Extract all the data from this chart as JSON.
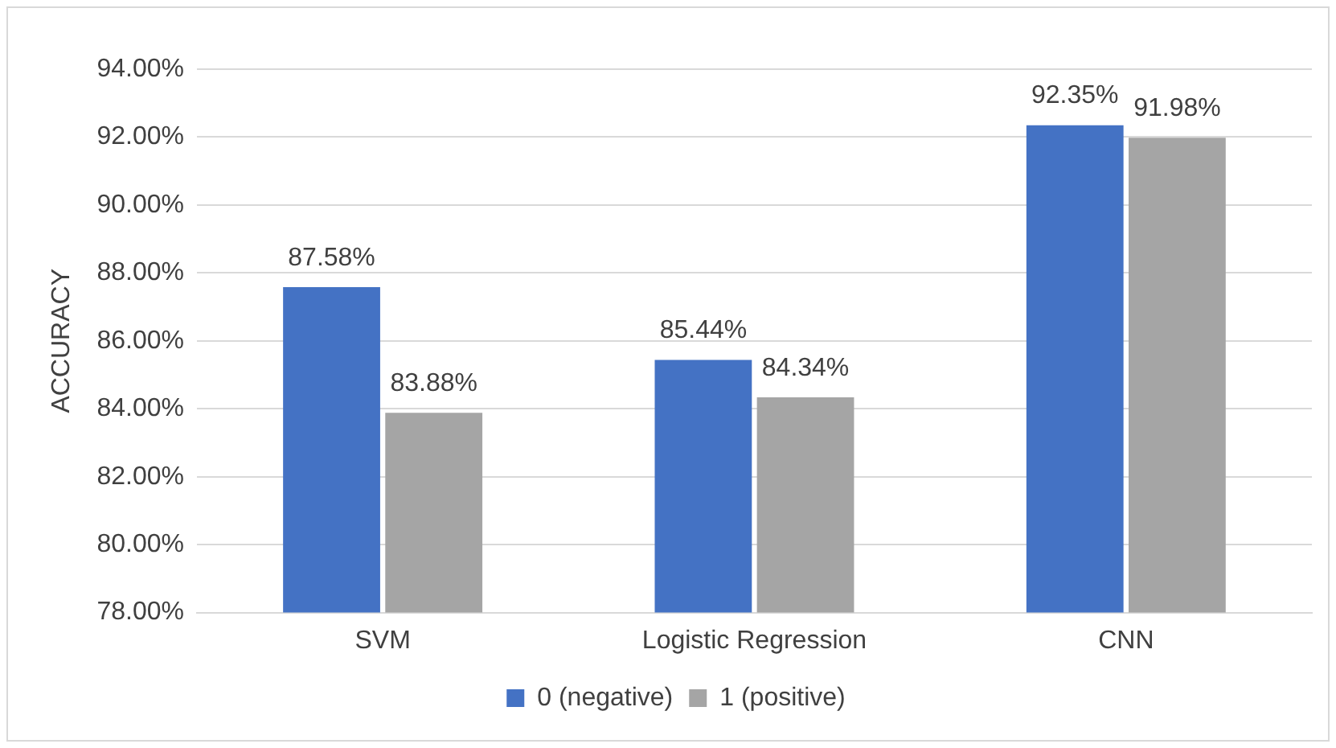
{
  "chart_data": {
    "type": "bar",
    "ylabel": "ACCURACY",
    "categories": [
      "SVM",
      "Logistic Regression",
      "CNN"
    ],
    "series": [
      {
        "name": "0 (negative)",
        "color": "#4472c4",
        "values": [
          87.58,
          85.44,
          92.35
        ],
        "value_labels": [
          "87.58%",
          "85.44%",
          "92.35%"
        ]
      },
      {
        "name": "1 (positive)",
        "color": "#a5a5a5",
        "values": [
          83.88,
          84.34,
          91.98
        ],
        "value_labels": [
          "83.88%",
          "84.34%",
          "91.98%"
        ]
      }
    ],
    "ylim": [
      78,
      94
    ],
    "yticks": [
      {
        "value": 78,
        "label": "78.00%"
      },
      {
        "value": 80,
        "label": "80.00%"
      },
      {
        "value": 82,
        "label": "82.00%"
      },
      {
        "value": 84,
        "label": "84.00%"
      },
      {
        "value": 86,
        "label": "86.00%"
      },
      {
        "value": 88,
        "label": "88.00%"
      },
      {
        "value": 90,
        "label": "90.00%"
      },
      {
        "value": 92,
        "label": "92.00%"
      },
      {
        "value": 94,
        "label": "94.00%"
      }
    ],
    "grid": "y",
    "legend": "bottom"
  }
}
